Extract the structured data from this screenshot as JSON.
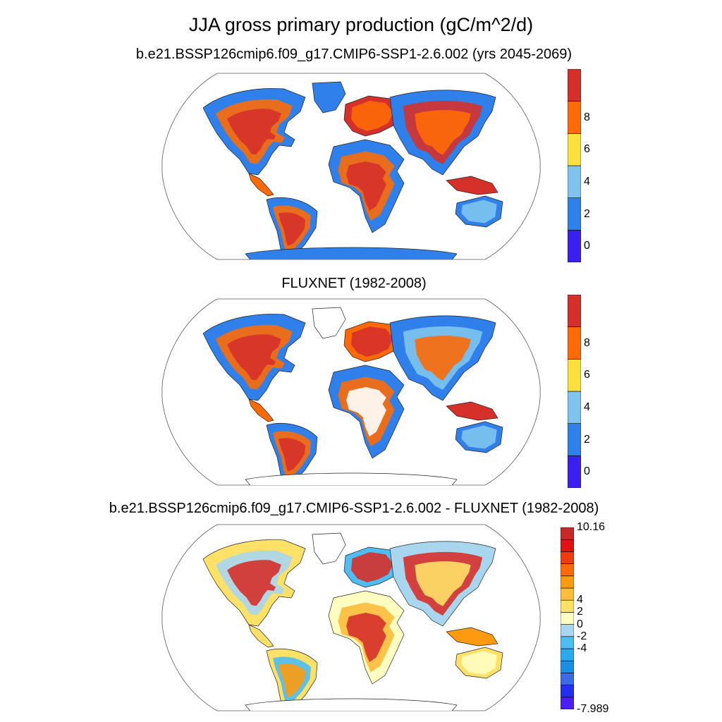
{
  "figure": {
    "title": "JJA gross primary production (gC/m^2/d)"
  },
  "panels": [
    {
      "title": "b.e21.BSSP126cmip6.f09_g17.CMIP6-SSP1-2.6.002 (yrs 2045-2069)",
      "colorbar": {
        "colors": [
          "#3b1ff0",
          "#2f80ea",
          "#7ec4ee",
          "#fce03c",
          "#fd6a07",
          "#d6302b"
        ],
        "labels": [
          "0",
          "2",
          "4",
          "6",
          "8"
        ]
      }
    },
    {
      "title": "FLUXNET (1982-2008)",
      "colorbar": {
        "colors": [
          "#3b1ff0",
          "#2f80ea",
          "#7ec4ee",
          "#fce03c",
          "#fd6a07",
          "#d6302b"
        ],
        "labels": [
          "0",
          "2",
          "4",
          "6",
          "8"
        ]
      }
    },
    {
      "title": "b.e21.BSSP126cmip6.f09_g17.CMIP6-SSP1-2.6.002 - FLUXNET (1982-2008)",
      "colorbar": {
        "colors": [
          "#4a1ff2",
          "#2330f0",
          "#3d6ae8",
          "#1a8fe8",
          "#2ba8ee",
          "#4dbdf2",
          "#a9d6ef",
          "#ffffc2",
          "#fee166",
          "#fdbd3b",
          "#fd9a10",
          "#fb6a08",
          "#f03b10",
          "#e01212",
          "#c82828"
        ],
        "labels": [
          "-4",
          "-2",
          "0",
          "2",
          "4"
        ],
        "min_label": "-7.989",
        "max_label": "10.16"
      }
    }
  ]
}
